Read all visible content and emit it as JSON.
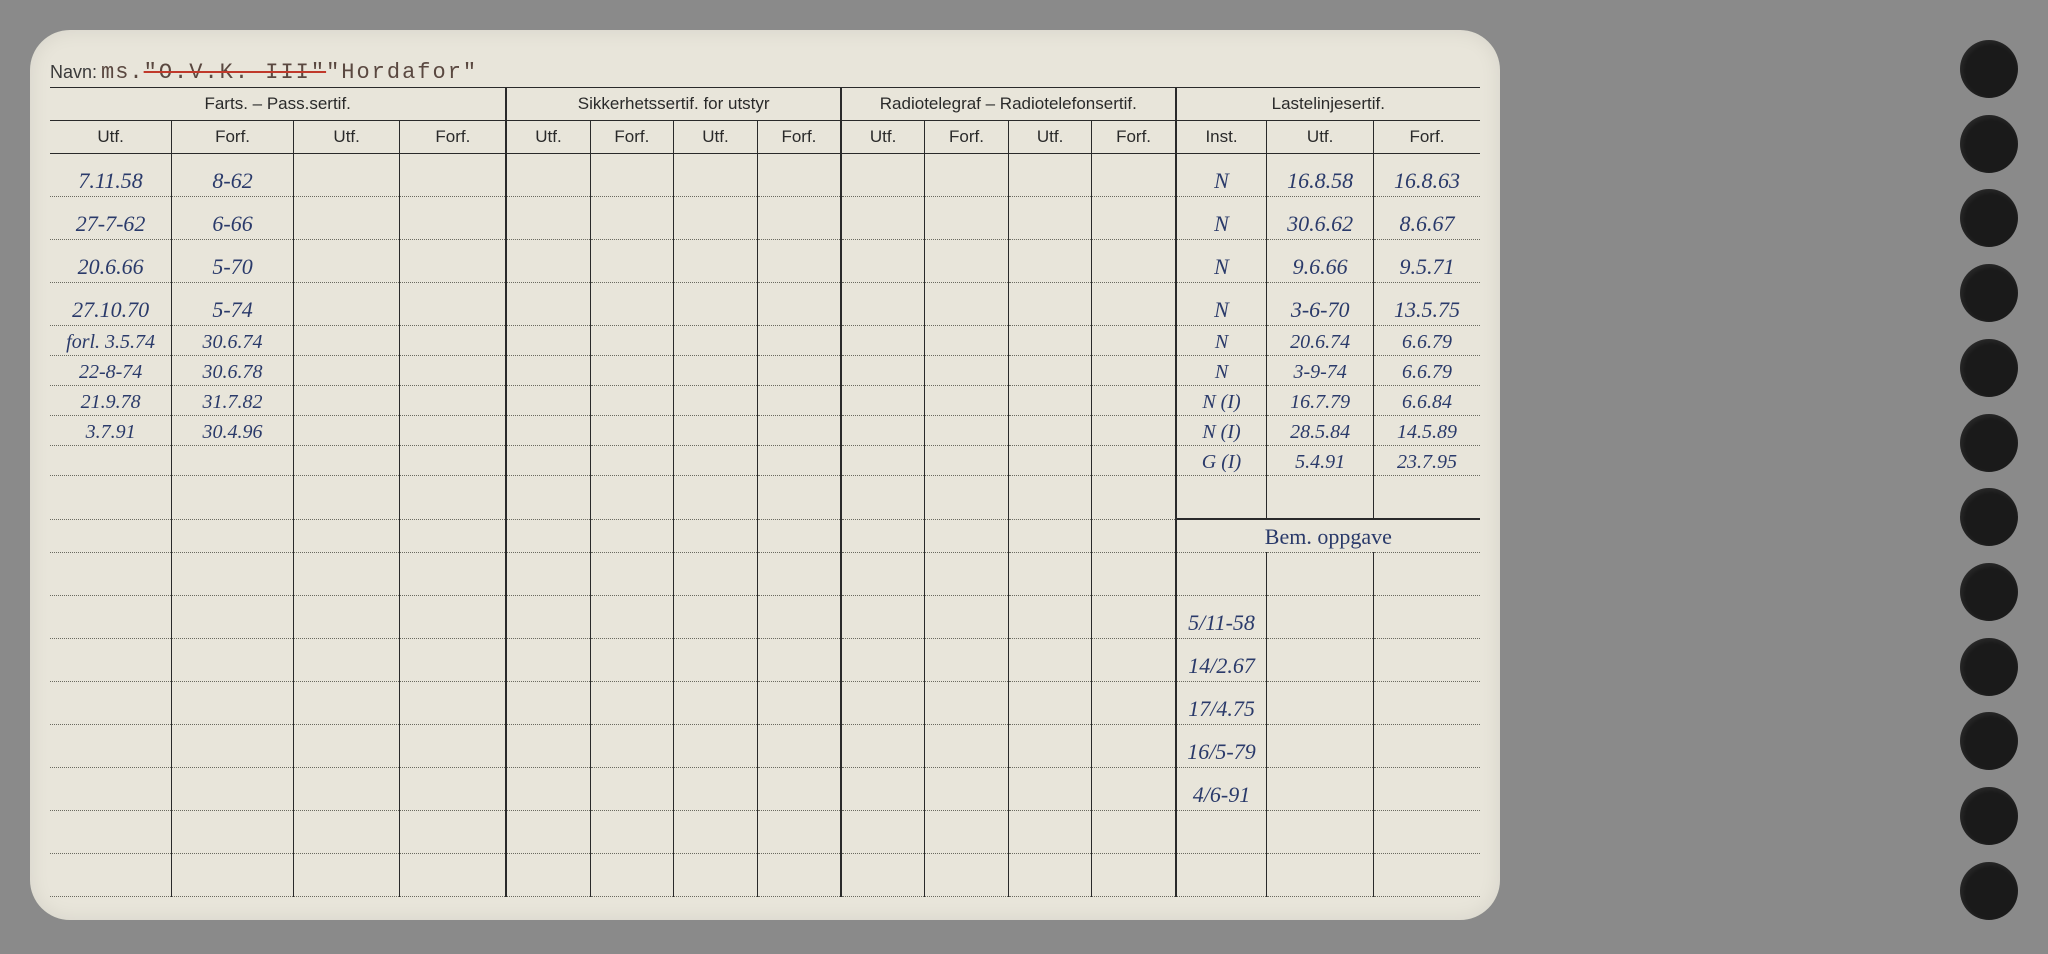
{
  "header": {
    "navn_label": "Navn:",
    "navn_prefix": "ms.",
    "navn_struck": "\"O.V.K. III\"",
    "navn_name": "\"Hordafor\""
  },
  "columns": {
    "group1": "Farts. – Pass.sertif.",
    "group2": "Sikkerhetssertif. for utstyr",
    "group3": "Radiotelegraf – Radiotelefonsertif.",
    "group4": "Lastelinjesertif.",
    "utf": "Utf.",
    "forf": "Forf.",
    "inst": "Inst.",
    "bem": "Bem. oppgave"
  },
  "column_widths_pct": [
    8,
    8,
    7,
    7,
    5.5,
    5.5,
    5.5,
    5.5,
    5.5,
    5.5,
    5.5,
    5.5,
    6,
    7,
    7
  ],
  "farts_rows": [
    {
      "utf": "7.11.58",
      "forf": "8-62"
    },
    {
      "utf": "27-7-62",
      "forf": "6-66"
    },
    {
      "utf": "20.6.66",
      "forf": "5-70"
    },
    {
      "utf": "27.10.70",
      "forf": "5-74"
    },
    {
      "utf": "forl. 3.5.74",
      "forf": "30.6.74"
    },
    {
      "utf": "22-8-74",
      "forf": "30.6.78"
    },
    {
      "utf": "21.9.78",
      "forf": "31.7.82"
    },
    {
      "utf": "3.7.91",
      "forf": "30.4.96"
    }
  ],
  "laste_rows": [
    {
      "inst": "N",
      "utf": "16.8.58",
      "forf": "16.8.63"
    },
    {
      "inst": "N",
      "utf": "30.6.62",
      "forf": "8.6.67"
    },
    {
      "inst": "N",
      "utf": "9.6.66",
      "forf": "9.5.71"
    },
    {
      "inst": "N",
      "utf": "3-6-70",
      "forf": "13.5.75"
    },
    {
      "inst": "N",
      "utf": "20.6.74",
      "forf": "6.6.79"
    },
    {
      "inst": "N",
      "utf": "3-9-74",
      "forf": "6.6.79"
    },
    {
      "inst": "N (I)",
      "utf": "16.7.79",
      "forf": "6.6.84"
    },
    {
      "inst": "N (I)",
      "utf": "28.5.84",
      "forf": "14.5.89"
    },
    {
      "inst": "G (I)",
      "utf": "5.4.91",
      "forf": "23.7.95"
    }
  ],
  "bem_rows": [
    "5/11-58",
    "14/2.67",
    "17/4.75",
    "16/5-79",
    "4/6-91"
  ],
  "colors": {
    "paper": "#e8e5da",
    "ink": "#2a3a6a",
    "print": "#2a2a2a",
    "strike": "#c0392b",
    "background": "#8a8a8a"
  }
}
